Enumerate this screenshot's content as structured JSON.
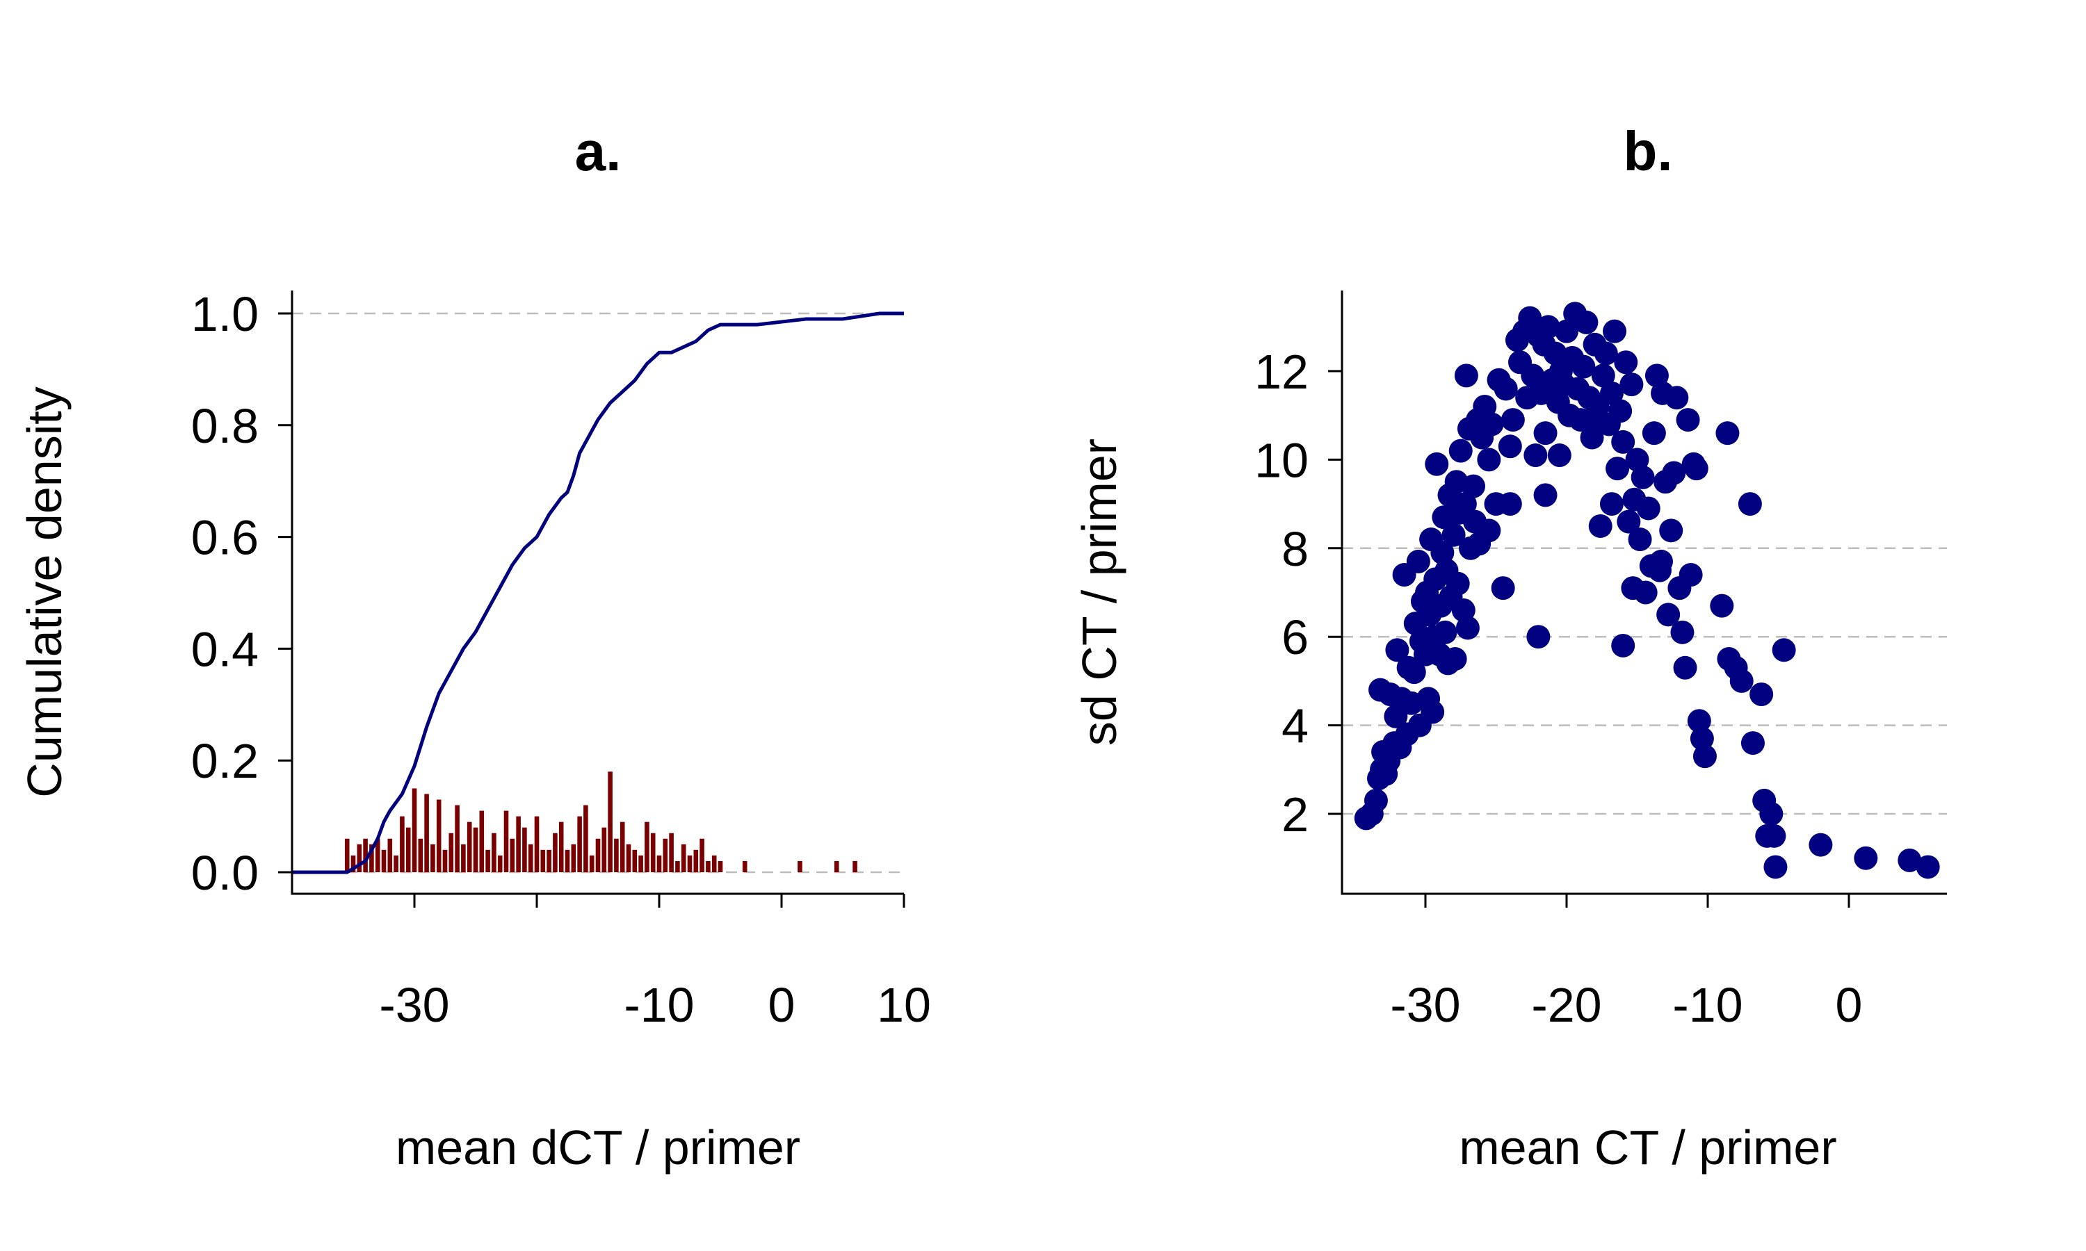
{
  "chart_data": [
    {
      "type": "line",
      "panel": "a.",
      "title": "a.",
      "xlabel": "mean dCT / primer",
      "ylabel": "Cumulative density",
      "xlim": [
        -40,
        10
      ],
      "ylim": [
        0,
        1
      ],
      "xticks": [
        -30,
        -10,
        0,
        10
      ],
      "yticks": [
        "0.0",
        "0.2",
        "0.4",
        "0.6",
        "0.8",
        "1.0"
      ],
      "grid_y": [
        0,
        1
      ],
      "series": [
        {
          "role": "ecdf",
          "color": "#00007f",
          "x": [
            -40,
            -35.5,
            -34,
            -33,
            -32.5,
            -32,
            -31,
            -30,
            -29,
            -28.5,
            -28,
            -27,
            -26,
            -25,
            -24,
            -23,
            -22,
            -21,
            -20,
            -19,
            -18,
            -17.5,
            -17,
            -16.5,
            -16,
            -15.5,
            -15,
            -14,
            -13,
            -12,
            -11,
            -10,
            -9,
            -8,
            -7,
            -6,
            -5,
            -4,
            -2,
            2,
            5,
            8,
            10
          ],
          "y": [
            0,
            0,
            0.02,
            0.06,
            0.09,
            0.11,
            0.14,
            0.19,
            0.26,
            0.29,
            0.32,
            0.36,
            0.4,
            0.43,
            0.47,
            0.51,
            0.55,
            0.58,
            0.6,
            0.64,
            0.67,
            0.68,
            0.71,
            0.75,
            0.77,
            0.79,
            0.81,
            0.84,
            0.86,
            0.88,
            0.91,
            0.93,
            0.93,
            0.94,
            0.95,
            0.97,
            0.98,
            0.98,
            0.98,
            0.99,
            0.99,
            1.0,
            1.0
          ]
        },
        {
          "role": "density-histogram",
          "type": "bar",
          "color": "#7a0000",
          "x": [
            -35.5,
            -35,
            -34.5,
            -34,
            -33.5,
            -33,
            -32.5,
            -32,
            -31.5,
            -31,
            -30.5,
            -30,
            -29.5,
            -29,
            -28.5,
            -28,
            -27.5,
            -27,
            -26.5,
            -26,
            -25.5,
            -25,
            -24.5,
            -24,
            -23.5,
            -23,
            -22.5,
            -22,
            -21.5,
            -21,
            -20.5,
            -20,
            -19.5,
            -19,
            -18.5,
            -18,
            -17.5,
            -17,
            -16.5,
            -16,
            -15.5,
            -15,
            -14.5,
            -14,
            -13.5,
            -13,
            -12.5,
            -12,
            -11.5,
            -11,
            -10.5,
            -10,
            -9.5,
            -9,
            -8.5,
            -8,
            -7.5,
            -7,
            -6.5,
            -6,
            -5.5,
            -5,
            -3,
            1.5,
            4.5,
            6
          ],
          "values": [
            0.06,
            0.03,
            0.05,
            0.06,
            0.05,
            0.06,
            0.04,
            0.06,
            0.03,
            0.1,
            0.08,
            0.15,
            0.06,
            0.14,
            0.05,
            0.13,
            0.04,
            0.07,
            0.12,
            0.05,
            0.09,
            0.08,
            0.11,
            0.04,
            0.07,
            0.03,
            0.11,
            0.06,
            0.1,
            0.08,
            0.05,
            0.1,
            0.04,
            0.04,
            0.07,
            0.09,
            0.04,
            0.05,
            0.1,
            0.12,
            0.03,
            0.06,
            0.08,
            0.18,
            0.06,
            0.09,
            0.05,
            0.04,
            0.03,
            0.09,
            0.07,
            0.03,
            0.06,
            0.07,
            0.02,
            0.05,
            0.03,
            0.04,
            0.06,
            0.02,
            0.03,
            0.02,
            0.02,
            0.02,
            0.02,
            0.02
          ]
        }
      ]
    },
    {
      "type": "scatter",
      "panel": "b.",
      "title": "b.",
      "xlabel": "mean CT / primer",
      "ylabel": "sd CT / primer",
      "xlim": [
        -35,
        6
      ],
      "ylim": [
        0.5,
        13.5
      ],
      "xticks": [
        -30,
        -20,
        -10,
        0
      ],
      "yticks": [
        2,
        4,
        6,
        8,
        10,
        12
      ],
      "grid_y": [
        2,
        4,
        6,
        8
      ],
      "color": "#000080",
      "points": [
        [
          -34.2,
          1.9
        ],
        [
          -33.8,
          2.0
        ],
        [
          -33.5,
          2.3
        ],
        [
          -33.3,
          2.8
        ],
        [
          -33.1,
          3.0
        ],
        [
          -33.0,
          3.4
        ],
        [
          -32.8,
          2.9
        ],
        [
          -32.6,
          3.2
        ],
        [
          -33.2,
          4.8
        ],
        [
          -32.5,
          4.7
        ],
        [
          -32.2,
          3.6
        ],
        [
          -32.1,
          4.2
        ],
        [
          -32.0,
          5.7
        ],
        [
          -31.8,
          3.5
        ],
        [
          -31.7,
          4.6
        ],
        [
          -31.5,
          7.4
        ],
        [
          -31.3,
          3.8
        ],
        [
          -31.2,
          5.3
        ],
        [
          -31.0,
          4.5
        ],
        [
          -30.8,
          5.2
        ],
        [
          -30.7,
          6.3
        ],
        [
          -30.5,
          7.7
        ],
        [
          -30.4,
          4.0
        ],
        [
          -30.3,
          5.9
        ],
        [
          -30.2,
          6.8
        ],
        [
          -30.0,
          5.6
        ],
        [
          -29.9,
          7.0
        ],
        [
          -29.8,
          4.6
        ],
        [
          -29.7,
          6.5
        ],
        [
          -29.6,
          8.2
        ],
        [
          -29.5,
          4.3
        ],
        [
          -29.4,
          6.0
        ],
        [
          -29.3,
          7.3
        ],
        [
          -29.2,
          9.9
        ],
        [
          -29.0,
          5.6
        ],
        [
          -28.9,
          6.7
        ],
        [
          -28.8,
          7.9
        ],
        [
          -28.7,
          8.7
        ],
        [
          -28.6,
          6.1
        ],
        [
          -28.5,
          7.5
        ],
        [
          -28.4,
          5.4
        ],
        [
          -28.3,
          9.2
        ],
        [
          -28.2,
          6.9
        ],
        [
          -28.0,
          8.3
        ],
        [
          -27.9,
          5.5
        ],
        [
          -27.8,
          9.5
        ],
        [
          -27.7,
          7.2
        ],
        [
          -27.6,
          8.8
        ],
        [
          -27.5,
          10.2
        ],
        [
          -27.3,
          6.6
        ],
        [
          -27.2,
          9.0
        ],
        [
          -27.1,
          11.9
        ],
        [
          -27.0,
          6.2
        ],
        [
          -26.9,
          10.7
        ],
        [
          -26.8,
          8.0
        ],
        [
          -26.6,
          9.4
        ],
        [
          -26.5,
          8.6
        ],
        [
          -26.3,
          10.9
        ],
        [
          -26.2,
          8.1
        ],
        [
          -26.0,
          10.5
        ],
        [
          -25.8,
          11.2
        ],
        [
          -25.5,
          8.4
        ],
        [
          -25.3,
          10.8
        ],
        [
          -25.0,
          9.0
        ],
        [
          -24.8,
          11.8
        ],
        [
          -24.5,
          7.1
        ],
        [
          -24.3,
          11.6
        ],
        [
          -24.0,
          10.3
        ],
        [
          -23.8,
          10.9
        ],
        [
          -23.5,
          12.7
        ],
        [
          -23.3,
          12.2
        ],
        [
          -23.0,
          12.9
        ],
        [
          -22.8,
          11.4
        ],
        [
          -22.6,
          13.2
        ],
        [
          -22.4,
          11.9
        ],
        [
          -22.2,
          10.1
        ],
        [
          -22.0,
          12.8
        ],
        [
          -21.8,
          11.5
        ],
        [
          -21.6,
          12.6
        ],
        [
          -21.5,
          10.6
        ],
        [
          -21.3,
          13.0
        ],
        [
          -21.0,
          11.8
        ],
        [
          -20.8,
          12.4
        ],
        [
          -20.6,
          11.3
        ],
        [
          -20.4,
          12.0
        ],
        [
          -20.2,
          11.7
        ],
        [
          -20.0,
          12.9
        ],
        [
          -19.8,
          11.0
        ],
        [
          -19.6,
          12.3
        ],
        [
          -19.4,
          13.3
        ],
        [
          -19.2,
          11.6
        ],
        [
          -19.0,
          10.9
        ],
        [
          -18.8,
          12.1
        ],
        [
          -18.6,
          13.1
        ],
        [
          -18.4,
          11.4
        ],
        [
          -18.2,
          10.5
        ],
        [
          -18.0,
          12.6
        ],
        [
          -17.8,
          11.2
        ],
        [
          -17.6,
          8.5
        ],
        [
          -17.4,
          11.9
        ],
        [
          -17.2,
          12.4
        ],
        [
          -17.0,
          10.8
        ],
        [
          -16.8,
          11.5
        ],
        [
          -16.6,
          12.9
        ],
        [
          -16.4,
          9.8
        ],
        [
          -16.2,
          11.1
        ],
        [
          -16.0,
          10.4
        ],
        [
          -15.8,
          12.2
        ],
        [
          -15.6,
          8.6
        ],
        [
          -15.4,
          11.7
        ],
        [
          -15.2,
          9.1
        ],
        [
          -15.0,
          10.0
        ],
        [
          -14.8,
          8.2
        ],
        [
          -14.6,
          9.6
        ],
        [
          -14.4,
          7.0
        ],
        [
          -14.2,
          8.9
        ],
        [
          -14.0,
          7.6
        ],
        [
          -13.8,
          10.6
        ],
        [
          -13.6,
          11.9
        ],
        [
          -13.4,
          7.5
        ],
        [
          -13.2,
          11.5
        ],
        [
          -13.0,
          9.5
        ],
        [
          -12.8,
          6.5
        ],
        [
          -12.6,
          8.4
        ],
        [
          -12.4,
          9.7
        ],
        [
          -12.2,
          11.4
        ],
        [
          -12.0,
          7.1
        ],
        [
          -11.8,
          6.1
        ],
        [
          -11.6,
          5.3
        ],
        [
          -11.4,
          10.9
        ],
        [
          -11.2,
          7.4
        ],
        [
          -11.0,
          9.9
        ],
        [
          -10.8,
          9.8
        ],
        [
          -10.6,
          4.1
        ],
        [
          -10.4,
          3.7
        ],
        [
          -10.2,
          3.3
        ],
        [
          -9.0,
          6.7
        ],
        [
          -8.6,
          10.6
        ],
        [
          -8.5,
          5.5
        ],
        [
          -8.0,
          5.3
        ],
        [
          -7.6,
          5.0
        ],
        [
          -7.0,
          9.0
        ],
        [
          -6.8,
          3.6
        ],
        [
          -6.2,
          4.7
        ],
        [
          -4.6,
          5.7
        ],
        [
          -6.0,
          2.3
        ],
        [
          -5.8,
          1.5
        ],
        [
          -5.5,
          2.0
        ],
        [
          -5.3,
          1.5
        ],
        [
          -5.2,
          0.8
        ],
        [
          -2.0,
          1.3
        ],
        [
          1.2,
          1.0
        ],
        [
          4.3,
          0.95
        ],
        [
          5.6,
          0.8
        ],
        [
          -16.0,
          5.8
        ],
        [
          -22.0,
          6.0
        ],
        [
          -21.5,
          9.2
        ],
        [
          -24.0,
          9.0
        ],
        [
          -15.3,
          7.1
        ],
        [
          -13.3,
          7.7
        ],
        [
          -20.5,
          10.1
        ],
        [
          -18.0,
          10.8
        ],
        [
          -16.8,
          9.0
        ],
        [
          -25.5,
          10.0
        ]
      ]
    }
  ]
}
